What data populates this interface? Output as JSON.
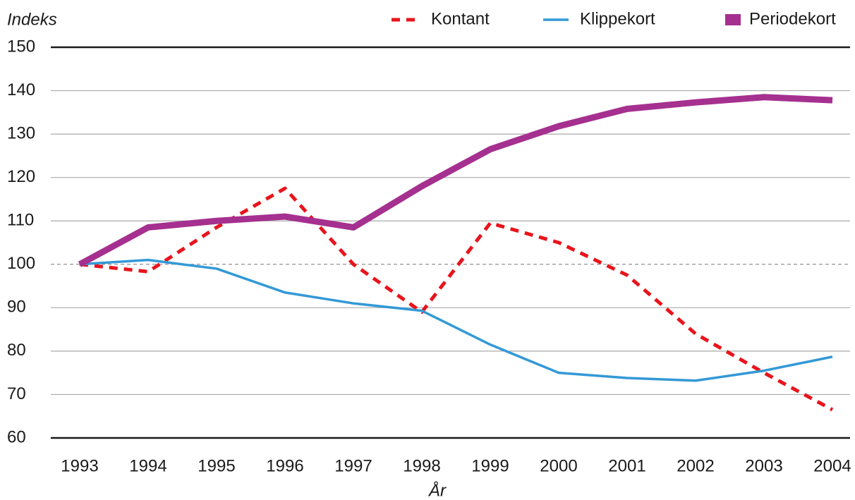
{
  "chart_data": {
    "type": "line",
    "y_axis_label": "Indeks",
    "x_axis_label": "År",
    "categories": [
      "1993",
      "1994",
      "1995",
      "1996",
      "1997",
      "1998",
      "1999",
      "2000",
      "2001",
      "2002",
      "2003",
      "2004"
    ],
    "series": [
      {
        "name": "Kontant",
        "color": "#e8141c",
        "dashed": true,
        "line_width": 5,
        "values": [
          100,
          98.3,
          108.5,
          117.5,
          100,
          89,
          109.5,
          105,
          97.5,
          84,
          75,
          66.5
        ]
      },
      {
        "name": "Klippekort",
        "color": "#3399d6",
        "dashed": false,
        "line_width": 3.5,
        "values": [
          100,
          101,
          99,
          93.5,
          91,
          89.3,
          81.5,
          75,
          73.8,
          73.2,
          75.5,
          78.7
        ]
      },
      {
        "name": "Periodekort",
        "color": "#a5308f",
        "dashed": false,
        "line_width": 9,
        "values": [
          100,
          108.5,
          110,
          111,
          108.5,
          118,
          126.5,
          131.8,
          135.8,
          137.3,
          138.5,
          137.8
        ]
      }
    ],
    "ylim": [
      60,
      150
    ],
    "yticks": [
      60,
      70,
      80,
      90,
      100,
      110,
      120,
      130,
      140,
      150
    ],
    "reference_line": 100,
    "grid": true,
    "legend": "top-right"
  }
}
